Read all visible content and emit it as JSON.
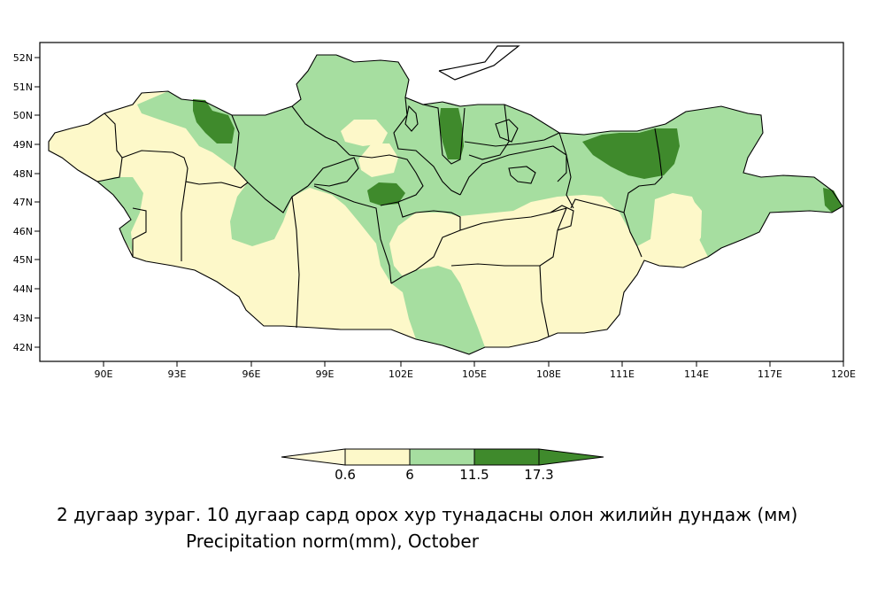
{
  "colors": {
    "very_light": "#fff9d6",
    "light": "#fdf8c9",
    "medium": "#a6dea0",
    "dark": "#3f8a2c",
    "border": "#000000",
    "background": "#ffffff"
  },
  "map": {
    "lat_ticks": [
      "42N",
      "43N",
      "44N",
      "45N",
      "46N",
      "47N",
      "48N",
      "49N",
      "50N",
      "51N",
      "52N"
    ],
    "lon_ticks": [
      "90E",
      "93E",
      "96E",
      "99E",
      "102E",
      "105E",
      "108E",
      "111E",
      "114E",
      "117E",
      "120E"
    ],
    "lat_range": [
      41.5,
      52.5
    ],
    "lon_range": [
      87,
      120
    ]
  },
  "colorbar": {
    "levels": [
      "0.6",
      "6",
      "11.5",
      "17.3"
    ],
    "bins": [
      "< 0.6",
      "0.6 – 6",
      "6 – 11.5",
      "11.5 – 17.3",
      "> 17.3"
    ]
  },
  "caption": {
    "mongolian": "2 дугаар зураг. 10 дугаар сард орох хур тунадасны олон жилийн дундаж (мм)",
    "english": "Precipitation norm(mm), October"
  }
}
